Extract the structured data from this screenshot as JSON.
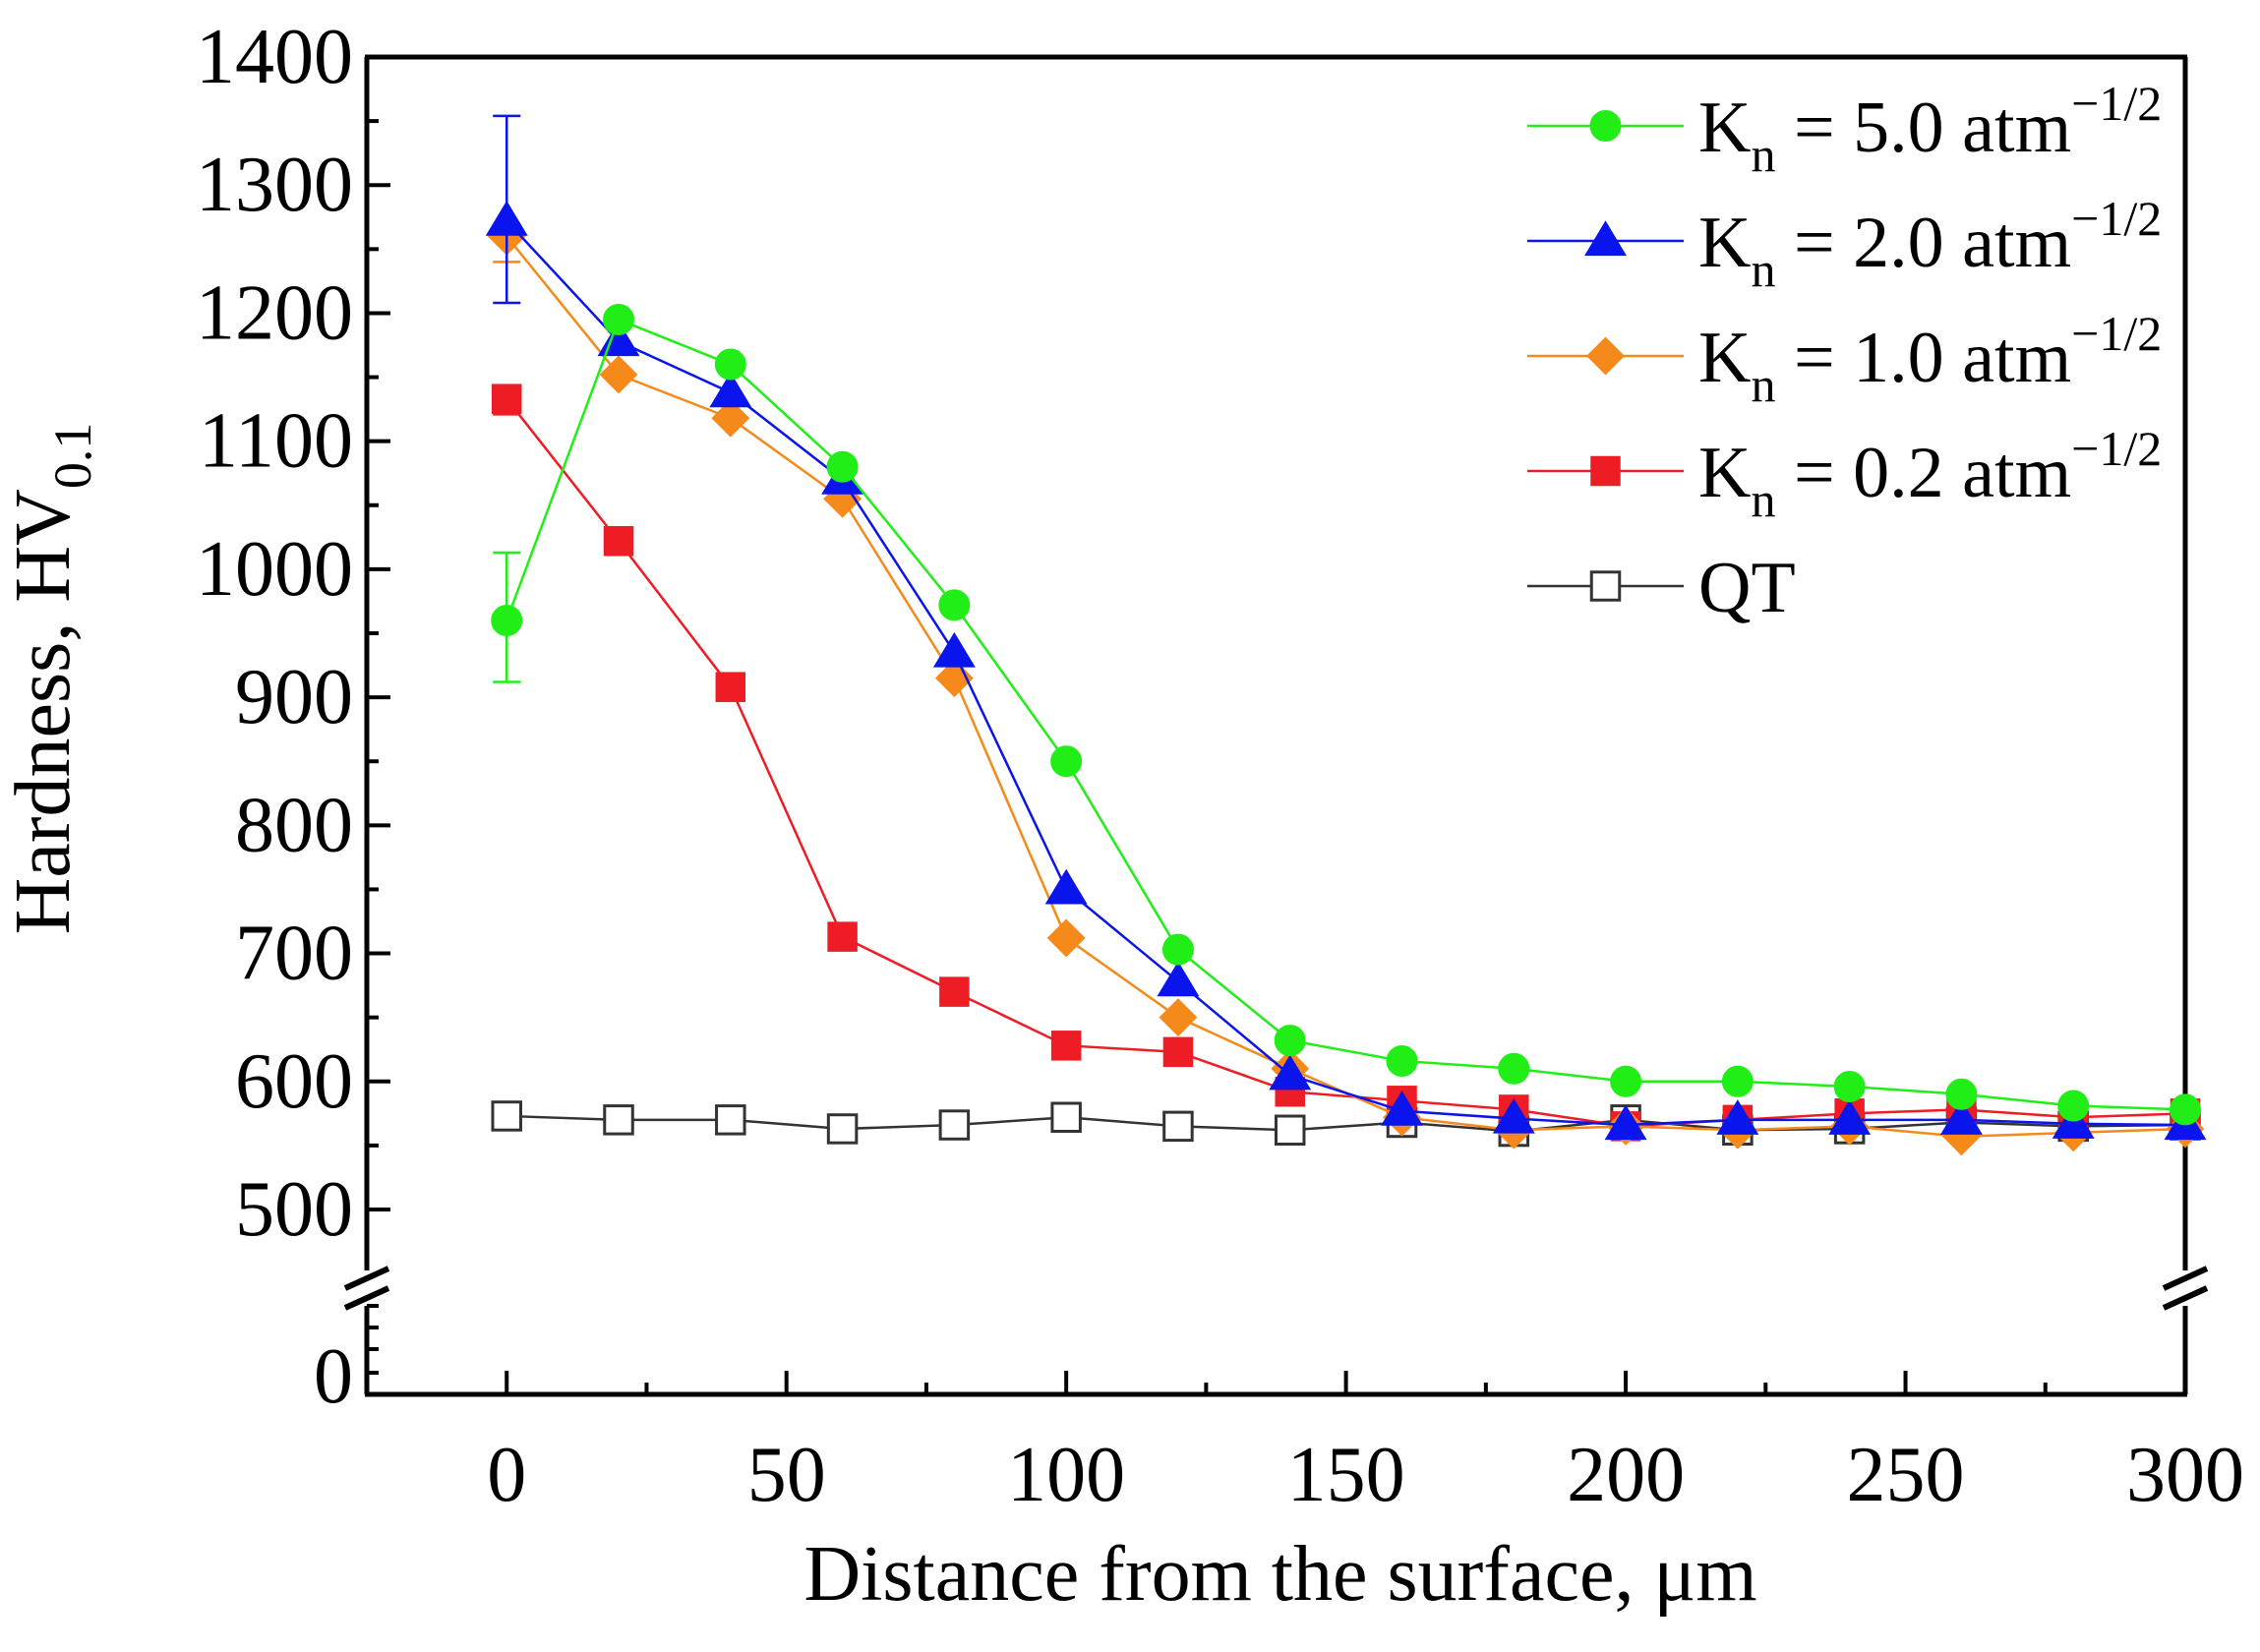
{
  "chart_data": {
    "type": "line",
    "title": "",
    "xlabel": "Distance from the surface, μm",
    "ylabel": {
      "main": "Hardness, HV",
      "sub": "0.1"
    },
    "xlim": [
      -25,
      300
    ],
    "ylim": [
      450,
      1400
    ],
    "axis_break": true,
    "xticks": [
      0,
      50,
      100,
      150,
      200,
      250,
      300
    ],
    "yticks": [
      500,
      600,
      700,
      800,
      900,
      1000,
      1100,
      1200,
      1300,
      1400
    ],
    "ybottom_tick": 0,
    "x": [
      0,
      20,
      40,
      60,
      80,
      100,
      120,
      140,
      160,
      180,
      200,
      220,
      240,
      260,
      280,
      300
    ],
    "legend_position": "top-right",
    "series": [
      {
        "key": "kn50",
        "name": "K",
        "sub": "n",
        "rest": " = 5.0 atm",
        "sup": "−1/2",
        "color": "#21ee16",
        "marker": "circle",
        "filled": true,
        "values": [
          960,
          1195,
          1160,
          1080,
          972,
          850,
          703,
          632,
          616,
          610,
          600,
          600,
          596,
          590,
          581,
          578
        ],
        "error": {
          "x": 0,
          "low": 912,
          "high": 1013
        }
      },
      {
        "key": "kn20",
        "name": "K",
        "sub": "n",
        "rest": " = 2.0 atm",
        "sup": "−1/2",
        "color": "#0a14ec",
        "marker": "triangle",
        "filled": true,
        "values": [
          1272,
          1178,
          1138,
          1070,
          935,
          750,
          678,
          605,
          577,
          571,
          566,
          570,
          570,
          570,
          567,
          566
        ],
        "error": {
          "x": 0,
          "low": 1208,
          "high": 1354
        }
      },
      {
        "key": "kn10",
        "name": "K",
        "sub": "n",
        "rest": " = 1.0 atm",
        "sup": "−1/2",
        "color": "#f58a1b",
        "marker": "diamond",
        "filled": true,
        "values": [
          1260,
          1152,
          1118,
          1055,
          915,
          712,
          650,
          610,
          572,
          562,
          565,
          562,
          565,
          557,
          560,
          563
        ],
        "error": {
          "x": 0,
          "low": 1240,
          "high": 1262
        }
      },
      {
        "key": "kn02",
        "name": "K",
        "sub": "n",
        "rest": " = 0.2 atm",
        "sup": "−1/2",
        "color": "#ee1c24",
        "marker": "square",
        "filled": true,
        "values": [
          1133,
          1022,
          908,
          713,
          670,
          628,
          623,
          592,
          585,
          578,
          565,
          570,
          575,
          578,
          572,
          575
        ],
        "error": {
          "x": 0,
          "low": 1121,
          "high": 1136
        }
      },
      {
        "key": "qt",
        "name": "QT",
        "sub": "",
        "rest": "",
        "sup": "",
        "color": "#333333",
        "marker": "square",
        "filled": false,
        "values": [
          573,
          570,
          570,
          563,
          566,
          572,
          565,
          562,
          568,
          561,
          570,
          562,
          563,
          568,
          565,
          566
        ]
      }
    ]
  }
}
